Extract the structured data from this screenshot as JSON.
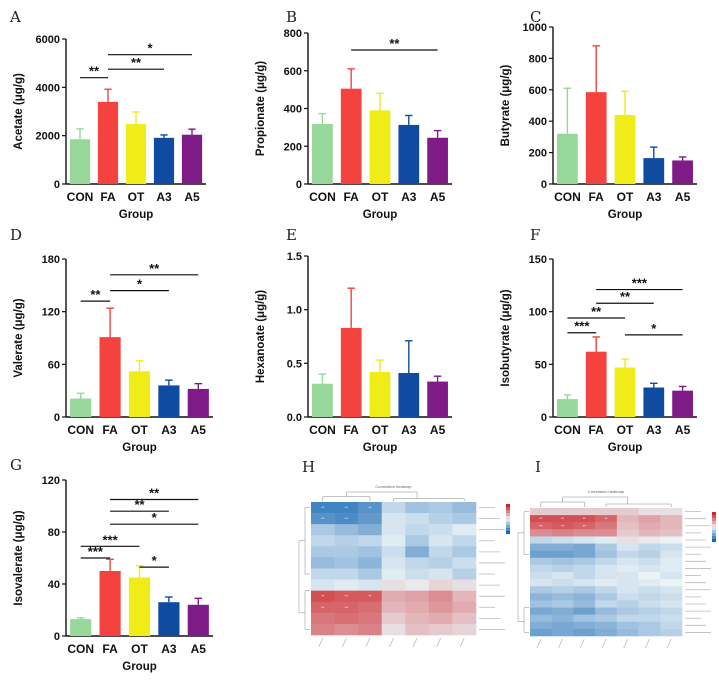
{
  "colors": {
    "CON": "#98d79a",
    "FA": "#f4423f",
    "OT": "#efec17",
    "A3": "#0f4ba0",
    "A5": "#7e1b86"
  },
  "chart_data": [
    {
      "panel": "A",
      "type": "bar",
      "categories": [
        "CON",
        "FA",
        "OT",
        "A3",
        "A5"
      ],
      "values": [
        1850,
        3400,
        2480,
        1910,
        2040
      ],
      "errors": [
        430,
        520,
        500,
        120,
        230
      ],
      "ylabel": "Acetate (μg/g)",
      "xlabel": "Group",
      "ylim": [
        0,
        6000
      ],
      "yticks": [
        0,
        2000,
        4000,
        6000
      ],
      "significance": [
        {
          "from": "CON",
          "to": "FA",
          "label": "**",
          "y": 4400
        },
        {
          "from": "FA",
          "to": "A5",
          "label": "*",
          "y": 5350
        },
        {
          "from": "FA",
          "to": "A3",
          "label": "**",
          "y": 4750
        }
      ]
    },
    {
      "panel": "B",
      "type": "bar",
      "categories": [
        "CON",
        "FA",
        "OT",
        "A3",
        "A5"
      ],
      "values": [
        318,
        505,
        390,
        313,
        245
      ],
      "errors": [
        55,
        105,
        90,
        50,
        38
      ],
      "ylabel": "Propionate (μg/g)",
      "xlabel": "Group",
      "ylim": [
        0,
        800
      ],
      "yticks": [
        0,
        200,
        400,
        600,
        800
      ],
      "significance": [
        {
          "from": "FA",
          "to": "A5",
          "label": "**",
          "y": 710
        }
      ]
    },
    {
      "panel": "C",
      "type": "bar",
      "categories": [
        "CON",
        "FA",
        "OT",
        "A3",
        "A5"
      ],
      "values": [
        320,
        585,
        440,
        165,
        150
      ],
      "errors": [
        290,
        295,
        150,
        70,
        22
      ],
      "ylabel": "Butyrate (μg/g)",
      "xlabel": "Group",
      "ylim": [
        0,
        1000
      ],
      "yticks": [
        0,
        200,
        400,
        600,
        800,
        1000
      ],
      "significance": []
    },
    {
      "panel": "D",
      "type": "bar",
      "categories": [
        "CON",
        "FA",
        "OT",
        "A3",
        "A5"
      ],
      "values": [
        21,
        91,
        52,
        36,
        32
      ],
      "errors": [
        6,
        33,
        12,
        6,
        6
      ],
      "ylabel": "Valerate (μg/g)",
      "xlabel": "Group",
      "ylim": [
        0,
        180
      ],
      "yticks": [
        0,
        60,
        120,
        180
      ],
      "significance": [
        {
          "from": "CON",
          "to": "FA",
          "label": "**",
          "y": 132
        },
        {
          "from": "FA",
          "to": "A3",
          "label": "*",
          "y": 144
        },
        {
          "from": "FA",
          "to": "A5",
          "label": "**",
          "y": 162
        }
      ]
    },
    {
      "panel": "E",
      "type": "bar",
      "categories": [
        "CON",
        "FA",
        "OT",
        "A3",
        "A5"
      ],
      "values": [
        0.31,
        0.83,
        0.42,
        0.41,
        0.33
      ],
      "errors": [
        0.09,
        0.37,
        0.11,
        0.3,
        0.05
      ],
      "ylabel": "Hexanoate (μg/g)",
      "xlabel": "Group",
      "ylim": [
        0,
        1.5
      ],
      "yticks": [
        0,
        0.5,
        1.0,
        1.5
      ],
      "ytickLabels": [
        "0.0",
        "0.5",
        "1.0",
        "1.5"
      ],
      "significance": []
    },
    {
      "panel": "F",
      "type": "bar",
      "categories": [
        "CON",
        "FA",
        "OT",
        "A3",
        "A5"
      ],
      "values": [
        17,
        62,
        47,
        28,
        25
      ],
      "errors": [
        4,
        14,
        8,
        4,
        4
      ],
      "ylabel": "Isobutyrate (μg/g)",
      "xlabel": "Group",
      "ylim": [
        0,
        150
      ],
      "yticks": [
        0,
        50,
        100,
        150
      ],
      "significance": [
        {
          "from": "CON",
          "to": "FA",
          "label": "***",
          "y": 80
        },
        {
          "from": "CON",
          "to": "OT",
          "label": "**",
          "y": 94
        },
        {
          "from": "FA",
          "to": "A3",
          "label": "**",
          "y": 108
        },
        {
          "from": "FA",
          "to": "A5",
          "label": "***",
          "y": 121
        },
        {
          "from": "OT",
          "to": "A5",
          "label": "*",
          "y": 78
        }
      ]
    },
    {
      "panel": "G",
      "type": "bar",
      "categories": [
        "CON",
        "FA",
        "OT",
        "A3",
        "A5"
      ],
      "values": [
        13,
        50,
        45,
        26,
        24
      ],
      "errors": [
        1,
        9,
        9,
        4,
        5
      ],
      "ylabel": "Isovalerate (μg/g)",
      "xlabel": "Group",
      "ylim": [
        0,
        120
      ],
      "yticks": [
        0,
        40,
        80,
        120
      ],
      "significance": [
        {
          "from": "CON",
          "to": "FA",
          "label": "***",
          "y": 60
        },
        {
          "from": "CON",
          "to": "OT",
          "label": "***",
          "y": 69
        },
        {
          "from": "OT",
          "to": "A3",
          "label": "*",
          "y": 53
        },
        {
          "from": "FA",
          "to": "A5",
          "label": "*",
          "y": 86
        },
        {
          "from": "FA",
          "to": "A3",
          "label": "**",
          "y": 96
        },
        {
          "from": "FA",
          "to": "A5",
          "label": "**",
          "y": 105
        }
      ]
    },
    {
      "panel": "H",
      "type": "heatmap",
      "title": "Correlation heatmap",
      "matrix": [
        [
          -0.8,
          -0.8,
          -0.7,
          -0.2,
          -0.35,
          -0.3,
          -0.4
        ],
        [
          -0.7,
          -0.75,
          -0.65,
          -0.1,
          -0.15,
          -0.25,
          -0.3
        ],
        [
          -0.3,
          -0.4,
          -0.5,
          -0.1,
          -0.2,
          -0.15,
          -0.05
        ],
        [
          -0.2,
          -0.25,
          -0.2,
          -0.05,
          -0.3,
          -0.1,
          -0.2
        ],
        [
          -0.3,
          -0.3,
          -0.35,
          -0.15,
          -0.5,
          -0.2,
          -0.3
        ],
        [
          -0.4,
          -0.35,
          -0.45,
          -0.1,
          -0.2,
          -0.25,
          -0.15
        ],
        [
          -0.2,
          -0.2,
          -0.3,
          -0.05,
          -0.15,
          -0.1,
          -0.25
        ],
        [
          -0.1,
          -0.05,
          -0.1,
          0.1,
          0.05,
          0.15,
          0.1
        ],
        [
          0.8,
          0.75,
          0.75,
          0.35,
          0.4,
          0.5,
          0.3
        ],
        [
          0.7,
          0.7,
          0.65,
          0.3,
          0.35,
          0.45,
          0.35
        ],
        [
          0.6,
          0.65,
          0.6,
          0.2,
          0.3,
          0.35,
          0.25
        ],
        [
          0.55,
          0.5,
          0.55,
          0.1,
          0.25,
          0.2,
          0.15
        ]
      ]
    },
    {
      "panel": "I",
      "type": "heatmap",
      "title": "Correlation heatmap",
      "matrix": [
        [
          0.2,
          0.2,
          0.2,
          0.2,
          0.2,
          0.1,
          0.1
        ],
        [
          0.8,
          0.8,
          0.8,
          0.7,
          0.3,
          0.4,
          0.3
        ],
        [
          0.7,
          0.75,
          0.7,
          0.6,
          0.25,
          0.35,
          0.3
        ],
        [
          0.5,
          0.55,
          0.5,
          0.5,
          0.2,
          0.3,
          0.25
        ],
        [
          -0.2,
          -0.15,
          -0.1,
          -0.05,
          0.1,
          0.05,
          0.0
        ],
        [
          -0.5,
          -0.5,
          -0.55,
          -0.3,
          -0.1,
          -0.2,
          -0.15
        ],
        [
          -0.6,
          -0.6,
          -0.55,
          -0.35,
          -0.2,
          -0.25,
          -0.1
        ],
        [
          -0.3,
          -0.35,
          -0.3,
          -0.2,
          -0.1,
          -0.15,
          -0.05
        ],
        [
          -0.2,
          -0.25,
          -0.2,
          -0.1,
          -0.05,
          -0.1,
          -0.05
        ],
        [
          -0.15,
          -0.1,
          -0.2,
          -0.1,
          -0.1,
          0.0,
          -0.1
        ],
        [
          -0.1,
          -0.15,
          -0.1,
          -0.05,
          -0.1,
          -0.05,
          0.0
        ],
        [
          -0.3,
          -0.25,
          -0.3,
          -0.2,
          -0.1,
          -0.15,
          -0.1
        ],
        [
          -0.45,
          -0.4,
          -0.45,
          -0.3,
          -0.15,
          -0.2,
          -0.15
        ],
        [
          -0.35,
          -0.3,
          -0.4,
          -0.2,
          -0.25,
          -0.15,
          -0.1
        ],
        [
          -0.55,
          -0.5,
          -0.6,
          -0.4,
          -0.3,
          -0.25,
          -0.2
        ],
        [
          -0.4,
          -0.45,
          -0.35,
          -0.3,
          -0.2,
          -0.2,
          -0.15
        ],
        [
          -0.5,
          -0.55,
          -0.5,
          -0.45,
          -0.35,
          -0.3,
          -0.2
        ],
        [
          -0.6,
          -0.55,
          -0.6,
          -0.5,
          -0.4,
          -0.3,
          -0.25
        ]
      ]
    }
  ]
}
